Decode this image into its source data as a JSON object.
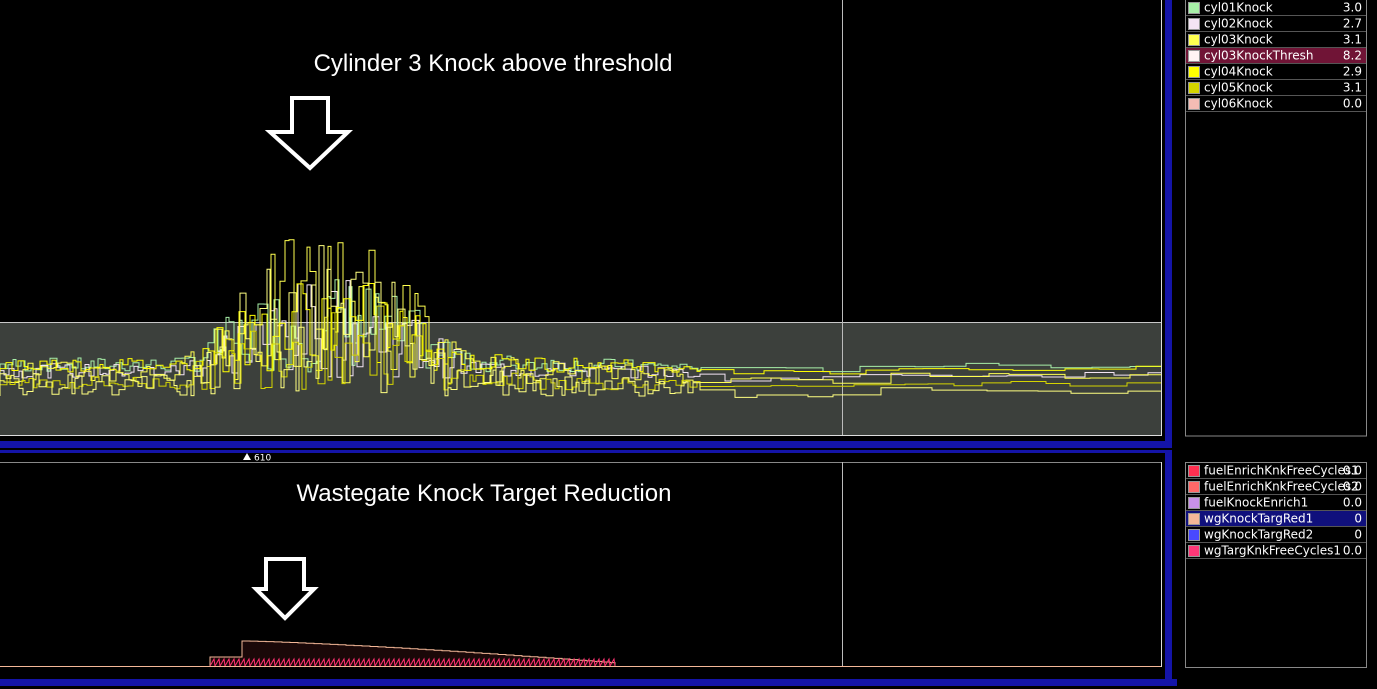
{
  "annotations": {
    "top": "Cylinder 3 Knock above threshold",
    "bottom": "Wastegate Knock Target Reduction"
  },
  "cursor_marker": "610",
  "top_legend": [
    {
      "name": "cyl01Knock",
      "value": "3.0",
      "color": "#a8f0a8"
    },
    {
      "name": "cyl02Knock",
      "value": "2.7",
      "color": "#f4e4f4"
    },
    {
      "name": "cyl03Knock",
      "value": "3.1",
      "color": "#ffff50"
    },
    {
      "name": "cyl03KnockThresh",
      "value": "8.2",
      "color": "#fff4f4",
      "selected": true
    },
    {
      "name": "cyl04Knock",
      "value": "2.9",
      "color": "#ffff00"
    },
    {
      "name": "cyl05Knock",
      "value": "3.1",
      "color": "#d4d400"
    },
    {
      "name": "cyl06Knock",
      "value": "0.0",
      "color": "#f4bcb4"
    }
  ],
  "bottom_legend": [
    {
      "name": "fuelEnrichKnkFreeCycles1",
      "value": "0.0",
      "color": "#ff3050"
    },
    {
      "name": "fuelEnrichKnkFreeCycles2",
      "value": "0.0",
      "color": "#ff6868"
    },
    {
      "name": "fuelKnockEnrich1",
      "value": "0.0",
      "color": "#c890e8"
    },
    {
      "name": "wgKnockTargRed1",
      "value": "0",
      "color": "#f4b898",
      "selected": true
    },
    {
      "name": "wgKnockTargRed2",
      "value": "0",
      "color": "#4848ff"
    },
    {
      "name": "wgTargKnkFreeCycles1",
      "value": "0.0",
      "color": "#ff3878"
    }
  ]
}
